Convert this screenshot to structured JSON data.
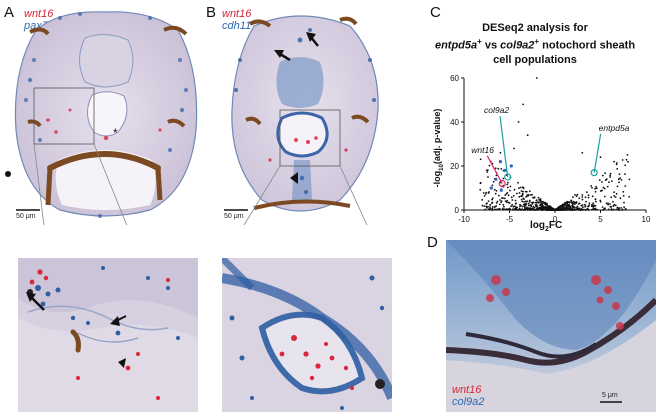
{
  "panels": {
    "a": {
      "letter": "A",
      "gene1": "wnt16",
      "gene2": "pax7a",
      "scalebar": "50 μm",
      "asterisk": "*"
    },
    "b": {
      "letter": "B",
      "gene1": "wnt16",
      "gene2": "cdh11",
      "scalebar": "50 μm"
    },
    "c": {
      "letter": "C"
    },
    "d": {
      "letter": "D",
      "gene1": "wnt16",
      "gene2": "col9a2",
      "scalebar": "5 μm"
    }
  },
  "chart_data": {
    "type": "scatter",
    "title_line1": "DESeq2 analysis for",
    "title_line2_part1": "entpd5a",
    "title_line2_sup1": "+",
    "title_line2_mid": " vs ",
    "title_line2_part2": "col9a2",
    "title_line2_sup2": "+",
    "title_line2_end": " notochord sheath",
    "title_line3": "cell populations",
    "xlabel": "log",
    "xlabel_sub": "2",
    "xlabel_end": "FC",
    "ylabel": "-log",
    "ylabel_sub": "10",
    "ylabel_end": "(adj. p-value)",
    "xlim": [
      -10,
      10
    ],
    "ylim": [
      0,
      60
    ],
    "xticks": [
      -10,
      -5,
      0,
      5,
      10
    ],
    "yticks": [
      0,
      20,
      40,
      60
    ],
    "xtick_labels": [
      "-10",
      "-5",
      "0",
      "5",
      "10"
    ],
    "ytick_labels": [
      "0",
      "20",
      "40",
      "60"
    ],
    "highlighted_genes": [
      {
        "name": "col9a2",
        "x": -5.2,
        "y": 15,
        "color": "#1a9e9e"
      },
      {
        "name": "wnt16",
        "x": -5.8,
        "y": 12,
        "color": "#e0245e"
      },
      {
        "name": "entpd5a",
        "x": 4.3,
        "y": 17,
        "color": "#1a9e9e"
      }
    ],
    "blue_points": [
      {
        "x": -6.0,
        "y": 22
      },
      {
        "x": -5.5,
        "y": 18
      },
      {
        "x": -6.5,
        "y": 14
      },
      {
        "x": -4.8,
        "y": 20
      },
      {
        "x": -5.9,
        "y": 9
      },
      {
        "x": -7.0,
        "y": 10
      }
    ],
    "background_points": "volcano",
    "grid": false
  }
}
